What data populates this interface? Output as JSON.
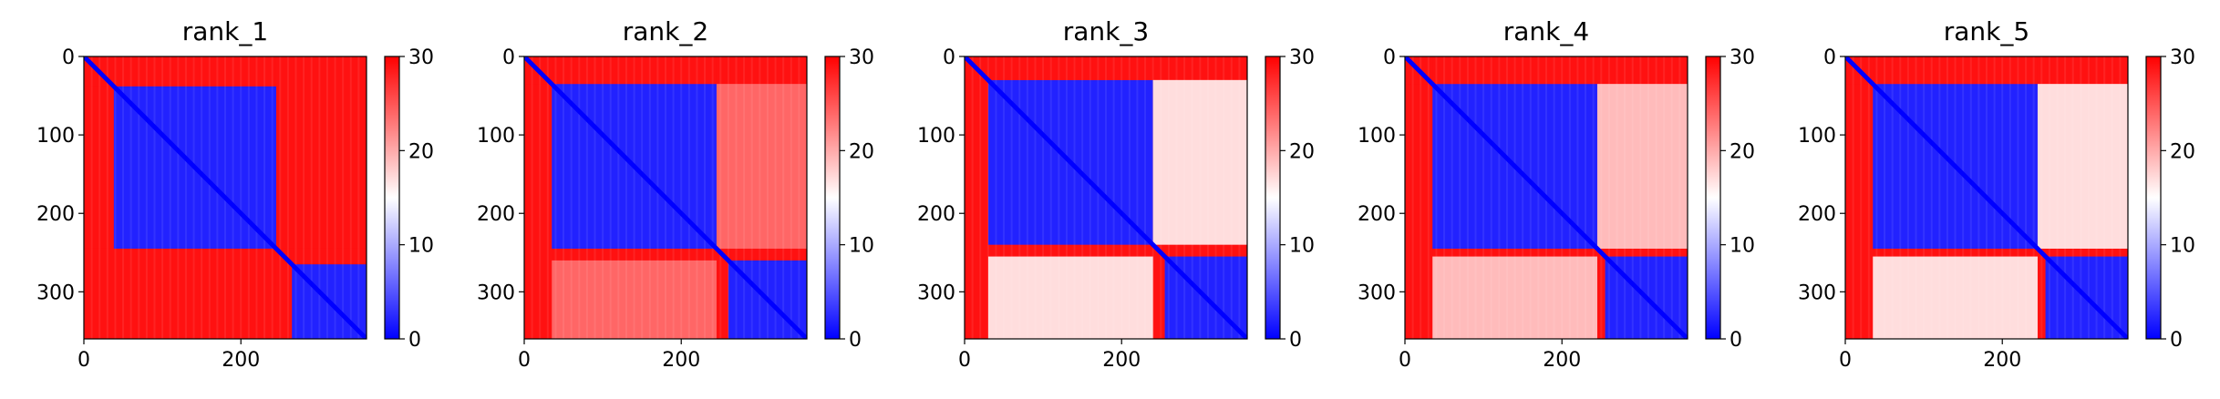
{
  "figure": {
    "panels": [
      {
        "title": "rank_1"
      },
      {
        "title": "rank_2"
      },
      {
        "title": "rank_3"
      },
      {
        "title": "rank_4"
      },
      {
        "title": "rank_5"
      }
    ]
  },
  "chart_data": [
    {
      "type": "heatmap",
      "title": "rank_1",
      "colormap": "bwr",
      "colors": {
        "low": "#0000ff",
        "mid": "#ffffff",
        "high": "#ff0000"
      },
      "x_ticks": [
        "0",
        "200"
      ],
      "y_ticks": [
        "0",
        "100",
        "200",
        "300"
      ],
      "x_range": [
        0,
        360
      ],
      "y_range": [
        0,
        360
      ],
      "colorbar_ticks": [
        "0",
        "10",
        "20",
        "30"
      ],
      "colorbar_range": [
        0,
        30
      ],
      "blocks": [
        {
          "x": [
            38,
            245
          ],
          "y": [
            38,
            245
          ],
          "value": 2
        },
        {
          "x": [
            265,
            360
          ],
          "y": [
            265,
            360
          ],
          "value": 2
        },
        {
          "x": [
            245,
            360
          ],
          "y": [
            0,
            245
          ],
          "value": 29
        },
        {
          "x": [
            0,
            245
          ],
          "y": [
            245,
            360
          ],
          "value": 29
        },
        {
          "x": [
            38,
            245
          ],
          "y": [
            0,
            38
          ],
          "value": 29
        },
        {
          "x": [
            0,
            38
          ],
          "y": [
            38,
            245
          ],
          "value": 29
        }
      ]
    },
    {
      "type": "heatmap",
      "title": "rank_2",
      "colormap": "bwr",
      "colors": {
        "low": "#0000ff",
        "mid": "#ffffff",
        "high": "#ff0000"
      },
      "x_ticks": [
        "0",
        "200"
      ],
      "y_ticks": [
        "0",
        "100",
        "200",
        "300"
      ],
      "x_range": [
        0,
        360
      ],
      "y_range": [
        0,
        360
      ],
      "colorbar_ticks": [
        "0",
        "10",
        "20",
        "30"
      ],
      "colorbar_range": [
        0,
        30
      ],
      "blocks": [
        {
          "x": [
            35,
            245
          ],
          "y": [
            35,
            245
          ],
          "value": 2
        },
        {
          "x": [
            260,
            360
          ],
          "y": [
            260,
            360
          ],
          "value": 2
        },
        {
          "x": [
            245,
            360
          ],
          "y": [
            35,
            245
          ],
          "value": 24
        },
        {
          "x": [
            35,
            245
          ],
          "y": [
            260,
            360
          ],
          "value": 24
        },
        {
          "x": [
            35,
            245
          ],
          "y": [
            0,
            35
          ],
          "value": 29
        },
        {
          "x": [
            0,
            35
          ],
          "y": [
            35,
            360
          ],
          "value": 29
        }
      ]
    },
    {
      "type": "heatmap",
      "title": "rank_3",
      "colormap": "bwr",
      "colors": {
        "low": "#0000ff",
        "mid": "#ffffff",
        "high": "#ff0000"
      },
      "x_ticks": [
        "0",
        "200"
      ],
      "y_ticks": [
        "0",
        "100",
        "200",
        "300"
      ],
      "x_range": [
        0,
        360
      ],
      "y_range": [
        0,
        360
      ],
      "colorbar_ticks": [
        "0",
        "10",
        "20",
        "30"
      ],
      "colorbar_range": [
        0,
        30
      ],
      "blocks": [
        {
          "x": [
            30,
            240
          ],
          "y": [
            30,
            240
          ],
          "value": 2
        },
        {
          "x": [
            255,
            360
          ],
          "y": [
            255,
            360
          ],
          "value": 2
        },
        {
          "x": [
            240,
            360
          ],
          "y": [
            30,
            240
          ],
          "value": 17
        },
        {
          "x": [
            30,
            240
          ],
          "y": [
            255,
            360
          ],
          "value": 17
        },
        {
          "x": [
            30,
            240
          ],
          "y": [
            0,
            30
          ],
          "value": 29
        },
        {
          "x": [
            0,
            30
          ],
          "y": [
            30,
            360
          ],
          "value": 29
        }
      ]
    },
    {
      "type": "heatmap",
      "title": "rank_4",
      "colormap": "bwr",
      "colors": {
        "low": "#0000ff",
        "mid": "#ffffff",
        "high": "#ff0000"
      },
      "x_ticks": [
        "0",
        "200"
      ],
      "y_ticks": [
        "0",
        "100",
        "200",
        "300"
      ],
      "x_range": [
        0,
        360
      ],
      "y_range": [
        0,
        360
      ],
      "colorbar_ticks": [
        "0",
        "10",
        "20",
        "30"
      ],
      "colorbar_range": [
        0,
        30
      ],
      "blocks": [
        {
          "x": [
            35,
            245
          ],
          "y": [
            35,
            245
          ],
          "value": 2
        },
        {
          "x": [
            255,
            360
          ],
          "y": [
            255,
            360
          ],
          "value": 2
        },
        {
          "x": [
            245,
            360
          ],
          "y": [
            35,
            245
          ],
          "value": 19
        },
        {
          "x": [
            35,
            245
          ],
          "y": [
            255,
            360
          ],
          "value": 19
        },
        {
          "x": [
            35,
            245
          ],
          "y": [
            0,
            35
          ],
          "value": 29
        },
        {
          "x": [
            0,
            35
          ],
          "y": [
            35,
            360
          ],
          "value": 29
        }
      ]
    },
    {
      "type": "heatmap",
      "title": "rank_5",
      "colormap": "bwr",
      "colors": {
        "low": "#0000ff",
        "mid": "#ffffff",
        "high": "#ff0000"
      },
      "x_ticks": [
        "0",
        "200"
      ],
      "y_ticks": [
        "0",
        "100",
        "200",
        "300"
      ],
      "x_range": [
        0,
        360
      ],
      "y_range": [
        0,
        360
      ],
      "colorbar_ticks": [
        "0",
        "10",
        "20",
        "30"
      ],
      "colorbar_range": [
        0,
        30
      ],
      "blocks": [
        {
          "x": [
            35,
            245
          ],
          "y": [
            35,
            245
          ],
          "value": 2
        },
        {
          "x": [
            255,
            360
          ],
          "y": [
            255,
            360
          ],
          "value": 2
        },
        {
          "x": [
            245,
            360
          ],
          "y": [
            35,
            245
          ],
          "value": 17
        },
        {
          "x": [
            35,
            245
          ],
          "y": [
            255,
            360
          ],
          "value": 17
        },
        {
          "x": [
            35,
            245
          ],
          "y": [
            0,
            35
          ],
          "value": 29
        },
        {
          "x": [
            0,
            35
          ],
          "y": [
            35,
            360
          ],
          "value": 29
        }
      ]
    }
  ]
}
